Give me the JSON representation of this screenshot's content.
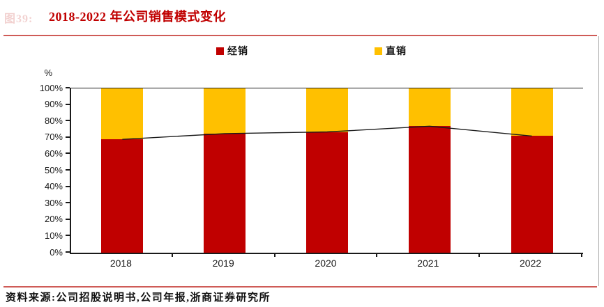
{
  "header": {
    "figure_label": "图39:",
    "title": "2018-2022 年公司销售模式变化"
  },
  "legend": [
    {
      "label": "经销",
      "color": "#c00000"
    },
    {
      "label": "直销",
      "color": "#ffc000"
    }
  ],
  "chart_data": {
    "type": "bar",
    "subtype": "stacked-100%-bars-with-line-overlay",
    "title": "2018-2022 年公司销售模式变化",
    "categories": [
      "2018",
      "2019",
      "2020",
      "2021",
      "2022"
    ],
    "series": [
      {
        "name": "经销",
        "type": "bar",
        "color": "#c00000",
        "values": [
          69,
          72.5,
          73.5,
          77,
          71
        ]
      },
      {
        "name": "直销",
        "type": "bar",
        "color": "#ffc000",
        "values": [
          31,
          27.5,
          26.5,
          23,
          29
        ]
      },
      {
        "name": "经销占比趋势线",
        "type": "line",
        "color": "#1a1a1a",
        "values": [
          69,
          72.5,
          73.5,
          77,
          71
        ]
      }
    ],
    "xlabel": "",
    "ylabel": "%",
    "ylim": [
      0,
      100
    ],
    "ytick_step": 10,
    "ytick_labels": [
      "0%",
      "10%",
      "20%",
      "30%",
      "40%",
      "50%",
      "60%",
      "70%",
      "80%",
      "90%",
      "100%"
    ],
    "grid": "off",
    "legend_position": "top"
  },
  "footer": {
    "source": "资料来源:公司招股说明书,公司年报,浙商证券研究所"
  },
  "colors": {
    "accent_red": "#c00000",
    "accent_gold": "#ffc000",
    "divider_red": "#cf5b57",
    "axis": "#1a1a1a",
    "cell_border_gray": "#a9a9a9"
  }
}
